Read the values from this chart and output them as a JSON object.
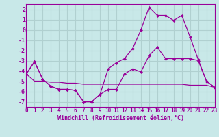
{
  "x": [
    0,
    1,
    2,
    3,
    4,
    5,
    6,
    7,
    8,
    9,
    10,
    11,
    12,
    13,
    14,
    15,
    16,
    17,
    18,
    19,
    20,
    21,
    22,
    23
  ],
  "line1": [
    -4.3,
    -3.1,
    -4.8,
    -5.5,
    -5.8,
    -5.8,
    -5.9,
    -7.0,
    -7.0,
    -6.3,
    -5.8,
    -5.8,
    -4.3,
    -3.8,
    -4.1,
    -2.5,
    -1.7,
    -2.8,
    -2.8,
    -2.8,
    -2.8,
    -3.0,
    -5.0,
    -5.6
  ],
  "line2": [
    -4.3,
    -3.1,
    -4.8,
    -5.5,
    -5.8,
    -5.8,
    -5.9,
    -7.0,
    -7.0,
    -6.3,
    -3.8,
    -3.2,
    -2.8,
    -1.8,
    0.0,
    2.2,
    1.4,
    1.4,
    0.9,
    1.4,
    -0.7,
    -2.9,
    -5.0,
    -5.6
  ],
  "line3": [
    -4.3,
    -5.0,
    -5.0,
    -5.1,
    -5.1,
    -5.2,
    -5.2,
    -5.3,
    -5.3,
    -5.3,
    -5.3,
    -5.3,
    -5.3,
    -5.3,
    -5.3,
    -5.3,
    -5.3,
    -5.3,
    -5.3,
    -5.3,
    -5.4,
    -5.4,
    -5.4,
    -5.6
  ],
  "xlim": [
    0,
    23
  ],
  "ylim": [
    -7.5,
    2.5
  ],
  "yticks": [
    -7,
    -6,
    -5,
    -4,
    -3,
    -2,
    -1,
    0,
    1,
    2
  ],
  "xticks": [
    0,
    1,
    2,
    3,
    4,
    5,
    6,
    7,
    8,
    9,
    10,
    11,
    12,
    13,
    14,
    15,
    16,
    17,
    18,
    19,
    20,
    21,
    22,
    23
  ],
  "xlabel": "Windchill (Refroidissement éolien,°C)",
  "line_color": "#990099",
  "bg_color": "#c8e8e8",
  "grid_color": "#b0d0d0",
  "marker": "D",
  "markersize": 2.0,
  "linewidth": 0.9,
  "tick_fontsize": 5.5,
  "xlabel_fontsize": 6.0
}
